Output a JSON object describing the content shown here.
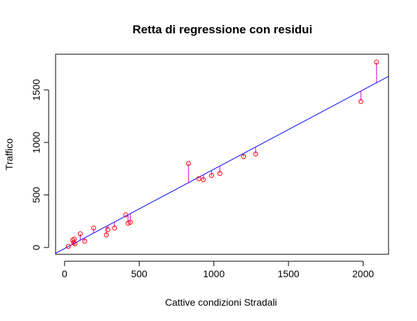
{
  "chart_data": {
    "type": "scatter",
    "title": "Retta di regressione con residui",
    "xlabel": "Cattive condizioni Stradali",
    "ylabel": "Traffico",
    "xlim": [
      -60,
      2170
    ],
    "ylim": [
      -65,
      1840
    ],
    "x_ticks": [
      0,
      500,
      1000,
      1500,
      2000
    ],
    "y_ticks": [
      0,
      500,
      1000,
      1500
    ],
    "grid": false,
    "regression_line": {
      "intercept": -10,
      "slope": 0.7552,
      "color": "#0000ff"
    },
    "residual_color": "#cc00cc",
    "point_color": "#ff0000",
    "points": [
      {
        "x": 25,
        "y": 10
      },
      {
        "x": 55,
        "y": 70
      },
      {
        "x": 60,
        "y": 45
      },
      {
        "x": 65,
        "y": 80
      },
      {
        "x": 70,
        "y": 35
      },
      {
        "x": 105,
        "y": 130
      },
      {
        "x": 135,
        "y": 60
      },
      {
        "x": 195,
        "y": 185
      },
      {
        "x": 280,
        "y": 120
      },
      {
        "x": 290,
        "y": 170
      },
      {
        "x": 335,
        "y": 185
      },
      {
        "x": 410,
        "y": 310
      },
      {
        "x": 425,
        "y": 230
      },
      {
        "x": 440,
        "y": 240
      },
      {
        "x": 830,
        "y": 800
      },
      {
        "x": 900,
        "y": 655
      },
      {
        "x": 930,
        "y": 645
      },
      {
        "x": 985,
        "y": 685
      },
      {
        "x": 1040,
        "y": 705
      },
      {
        "x": 1200,
        "y": 865
      },
      {
        "x": 1280,
        "y": 890
      },
      {
        "x": 1985,
        "y": 1390
      },
      {
        "x": 2090,
        "y": 1765
      }
    ]
  }
}
